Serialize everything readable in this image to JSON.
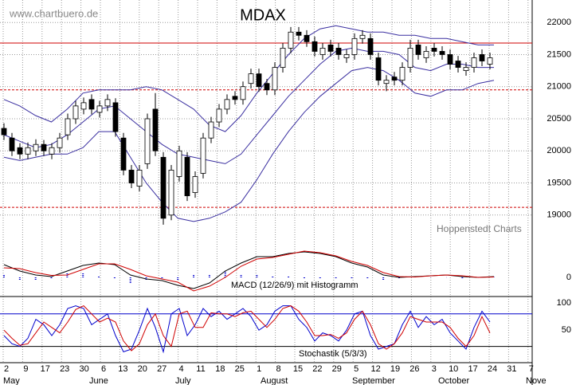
{
  "watermark": "www.chartbuero.de",
  "source": "Hoppenstedt Charts",
  "x_axis": {
    "dates": [
      "2",
      "9",
      "17",
      "23",
      "30",
      "6",
      "13",
      "20",
      "27",
      "4",
      "11",
      "18",
      "25",
      "1",
      "8",
      "15",
      "22",
      "29",
      "5",
      "12",
      "19",
      "26",
      "3",
      "10",
      "17",
      "24",
      "31",
      "7"
    ],
    "months": [
      "May",
      "June",
      "July",
      "August",
      "September",
      "October",
      "Nove"
    ]
  },
  "chart_data": [
    {
      "type": "candlestick",
      "title": "MDAX",
      "open": [
        20350,
        20200,
        20050,
        19950,
        20000,
        20100,
        19950,
        20050,
        20250,
        20500,
        20650,
        20800,
        20600,
        20700,
        20750,
        20200,
        19700,
        19450,
        19800,
        20650,
        19900,
        19000,
        19600,
        19900,
        19350,
        19650,
        20200,
        20450,
        20650,
        20850,
        20800,
        21050,
        21200,
        21050,
        20950,
        21300,
        21600,
        21850,
        21800,
        21700,
        21500,
        21650,
        21600,
        21450,
        21500,
        21750,
        21750,
        21450,
        21050,
        21150,
        21100,
        21300,
        21650,
        21450,
        21600,
        21550,
        21500,
        21400,
        21250,
        21300,
        21500,
        21350
      ],
      "high": [
        20430,
        20280,
        20120,
        20130,
        20180,
        20170,
        20120,
        20280,
        20580,
        20780,
        20830,
        20880,
        20780,
        20880,
        20820,
        20280,
        19780,
        19780,
        20580,
        20900,
        19980,
        19780,
        20080,
        19980,
        19680,
        20280,
        20530,
        20730,
        20880,
        20930,
        21080,
        21280,
        21280,
        21120,
        21380,
        21680,
        21930,
        21930,
        21880,
        21780,
        21680,
        21730,
        21680,
        21580,
        21830,
        21880,
        21830,
        21530,
        21180,
        21230,
        21380,
        21730,
        21730,
        21630,
        21680,
        21630,
        21580,
        21480,
        21380,
        21530,
        21580,
        21530
      ],
      "low": [
        20170,
        19920,
        19870,
        19870,
        19920,
        19920,
        19870,
        19970,
        20170,
        20420,
        20570,
        20570,
        20520,
        20620,
        20220,
        19620,
        19420,
        19370,
        19720,
        19920,
        18850,
        18920,
        19520,
        19220,
        19270,
        19570,
        20120,
        20370,
        20570,
        20720,
        20720,
        20970,
        20920,
        20870,
        20870,
        21220,
        21520,
        21720,
        21620,
        21470,
        21420,
        21470,
        21420,
        21370,
        21420,
        21670,
        21420,
        21020,
        20930,
        21020,
        21020,
        21220,
        21420,
        21370,
        21470,
        21420,
        21270,
        21220,
        21170,
        21220,
        21320,
        21270
      ],
      "close": [
        20250,
        20000,
        19950,
        20050,
        20100,
        20000,
        20050,
        20200,
        20500,
        20700,
        20750,
        20650,
        20700,
        20800,
        20300,
        19700,
        19500,
        19700,
        20500,
        20000,
        18950,
        19700,
        20000,
        19300,
        19600,
        20200,
        20450,
        20650,
        20800,
        20800,
        21000,
        21200,
        21000,
        20950,
        21300,
        21600,
        21850,
        21800,
        21700,
        21550,
        21600,
        21550,
        21500,
        21500,
        21750,
        21800,
        21500,
        21100,
        21100,
        21100,
        21300,
        21600,
        21500,
        21550,
        21550,
        21500,
        21350,
        21300,
        21300,
        21450,
        21400,
        21450
      ],
      "bands": {
        "color": "#3a2fa0",
        "upper": [
          20800,
          20700,
          20550,
          20450,
          20650,
          20900,
          20950,
          20950,
          20950,
          21000,
          20950,
          20800,
          20650,
          20400,
          20300,
          20550,
          20900,
          21200,
          21500,
          21750,
          21900,
          21950,
          21900,
          21850,
          21850,
          21800,
          21800,
          21750,
          21750,
          21700,
          21650,
          21650
        ],
        "middle": [
          20250,
          20150,
          20050,
          20100,
          20250,
          20450,
          20650,
          20700,
          20500,
          20300,
          20100,
          19950,
          19900,
          19850,
          19800,
          19950,
          20250,
          20550,
          20850,
          21100,
          21350,
          21550,
          21600,
          21550,
          21550,
          21500,
          21300,
          21250,
          21350,
          21350,
          21300,
          21300
        ],
        "lower": [
          19900,
          19850,
          19900,
          19950,
          19950,
          20050,
          20300,
          20300,
          19900,
          19500,
          19200,
          18950,
          18900,
          18950,
          19050,
          19200,
          19550,
          19950,
          20300,
          20600,
          20850,
          21050,
          21250,
          21300,
          21250,
          21100,
          20900,
          20850,
          20950,
          20950,
          21050,
          21100
        ]
      },
      "hlines": [
        {
          "value": 21680,
          "dashed": false,
          "color": "#d00000"
        },
        {
          "value": 20950,
          "dashed": true,
          "color": "#d00000"
        },
        {
          "value": 19120,
          "dashed": true,
          "color": "#d00000"
        }
      ],
      "ylim": [
        18650,
        22350
      ],
      "yticks": [
        19000,
        19500,
        20000,
        20500,
        21000,
        21500,
        22000
      ],
      "grid": true
    },
    {
      "type": "macd",
      "title": "MACD (12/26/9) mit Histogramm",
      "series": [
        {
          "color": "#000000",
          "values": [
            160,
            80,
            30,
            10,
            80,
            150,
            180,
            160,
            30,
            -20,
            -40,
            -100,
            -140,
            -70,
            80,
            180,
            260,
            260,
            300,
            320,
            300,
            260,
            180,
            130,
            30,
            0,
            10,
            20,
            30,
            10,
            0,
            10
          ]
        },
        {
          "color": "#d00000",
          "values": [
            120,
            110,
            60,
            25,
            30,
            100,
            170,
            170,
            100,
            20,
            -20,
            -60,
            -170,
            -110,
            0,
            140,
            230,
            250,
            290,
            330,
            310,
            270,
            200,
            150,
            60,
            10,
            5,
            20,
            30,
            20,
            0,
            5
          ]
        }
      ],
      "histogram": {
        "color": "#0000cc",
        "values": [
          40,
          -30,
          -30,
          -15,
          50,
          50,
          10,
          -10,
          -70,
          -40,
          -20,
          -40,
          30,
          40,
          80,
          40,
          30,
          10,
          10,
          -10,
          -10,
          -10,
          -20,
          -20,
          -30,
          -10,
          5,
          0,
          0,
          -10,
          0,
          5
        ]
      },
      "ylim": [
        -220,
        480
      ],
      "yticks": [
        0
      ]
    },
    {
      "type": "stochastic",
      "title": "Stochastik (5/3/3)",
      "series": [
        {
          "color": "#0000cc",
          "values": [
            40,
            25,
            20,
            35,
            70,
            60,
            40,
            60,
            90,
            95,
            90,
            60,
            70,
            80,
            40,
            10,
            15,
            50,
            90,
            55,
            10,
            80,
            90,
            40,
            60,
            90,
            75,
            85,
            70,
            80,
            90,
            75,
            50,
            60,
            85,
            95,
            95,
            70,
            55,
            30,
            45,
            40,
            30,
            50,
            80,
            85,
            40,
            15,
            20,
            25,
            60,
            85,
            55,
            75,
            60,
            70,
            45,
            30,
            15,
            55,
            85,
            65
          ]
        },
        {
          "color": "#d00000",
          "values": [
            50,
            35,
            22,
            25,
            45,
            65,
            55,
            45,
            65,
            88,
            95,
            80,
            65,
            72,
            65,
            30,
            12,
            25,
            60,
            80,
            40,
            20,
            80,
            85,
            55,
            55,
            82,
            80,
            80,
            75,
            82,
            85,
            70,
            55,
            70,
            90,
            95,
            85,
            65,
            40,
            40,
            42,
            35,
            45,
            70,
            85,
            60,
            25,
            15,
            25,
            45,
            75,
            70,
            65,
            65,
            65,
            55,
            35,
            20,
            40,
            75,
            45
          ]
        }
      ],
      "hlines": [
        {
          "value": 80,
          "color": "#0000cc"
        },
        {
          "value": 20,
          "color": "#000000"
        }
      ],
      "ylim": [
        -10,
        112
      ],
      "yticks": [
        50,
        100
      ]
    }
  ]
}
